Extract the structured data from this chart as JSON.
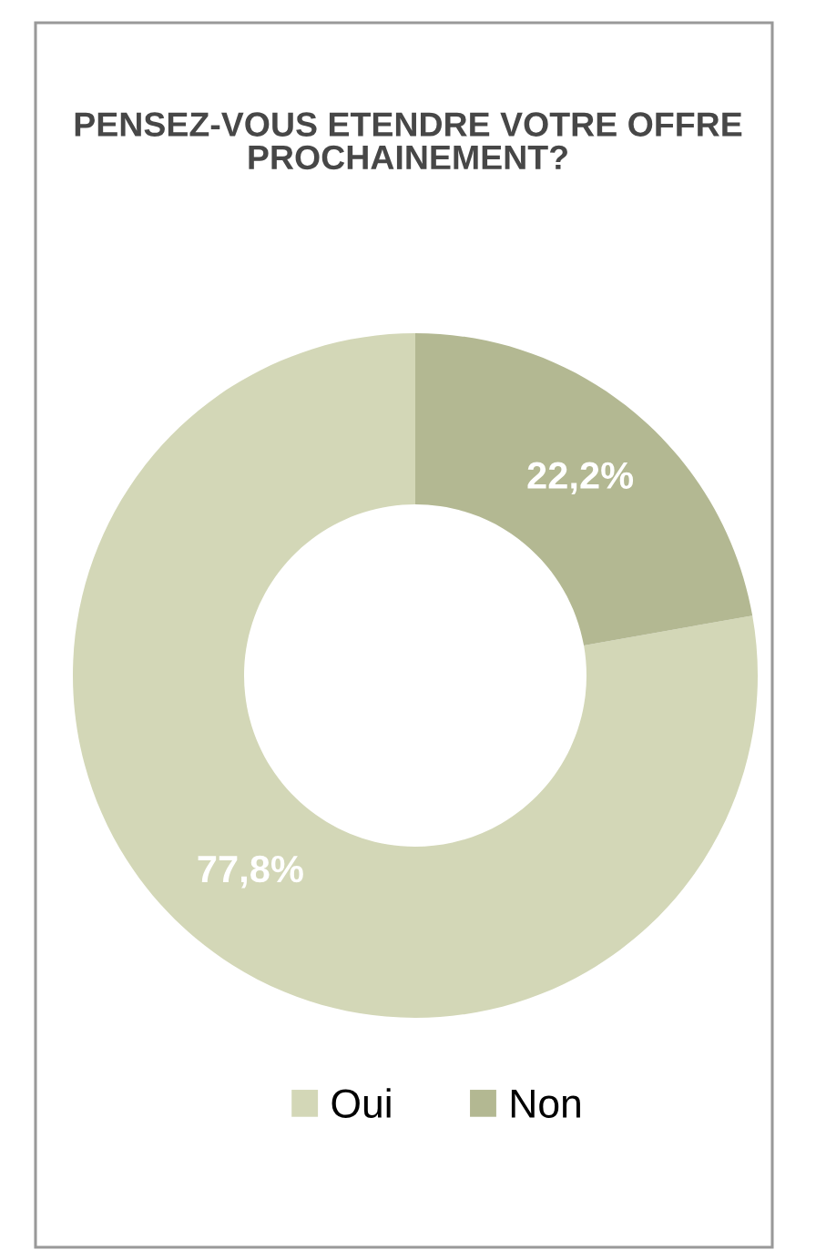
{
  "chart_data": {
    "type": "donut",
    "title": "PENSEZ-VOUS ETENDRE VOTRE OFFRE PROCHAINEMENT?",
    "categories": [
      "Oui",
      "Non"
    ],
    "values": [
      77.8,
      22.2
    ],
    "colors": [
      "#d3d7b7",
      "#b3b892"
    ],
    "value_labels": [
      "77,8%",
      "22,2%"
    ],
    "legend": "bottom"
  }
}
